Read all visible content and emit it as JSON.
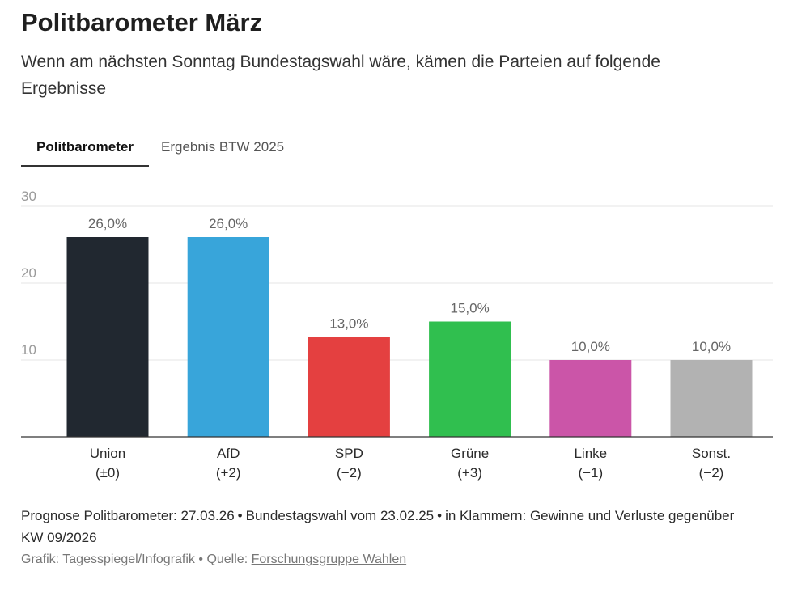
{
  "header": {
    "title": "Politbarometer März",
    "subtitle": "Wenn am nächsten Sonntag Bundestagswahl wäre, kämen die Parteien auf folgende Ergebnisse"
  },
  "tabs": [
    {
      "label": "Politbarometer",
      "active": true
    },
    {
      "label": "Ergebnis BTW 2025",
      "active": false
    }
  ],
  "chart_data": {
    "type": "bar",
    "categories": [
      "Union",
      "AfD",
      "SPD",
      "Grüne",
      "Linke",
      "Sonst."
    ],
    "changes": [
      "(±0)",
      "(+2)",
      "(−2)",
      "(+3)",
      "(−1)",
      "(−2)"
    ],
    "values": [
      26.0,
      26.0,
      13.0,
      15.0,
      10.0,
      10.0
    ],
    "value_labels": [
      "26,0%",
      "26,0%",
      "13,0%",
      "15,0%",
      "10,0%",
      "10,0%"
    ],
    "colors": [
      "#212830",
      "#38a5da",
      "#e44040",
      "#30bf4f",
      "#cb55a8",
      "#b2b2b2"
    ],
    "yticks": [
      10,
      20,
      30
    ],
    "ylim": [
      0,
      30
    ],
    "grid": true
  },
  "footnote": {
    "prognose": "Prognose Politbarometer: 27.03.26",
    "wahl": "Bundestagswahl vom 23.02.25",
    "klammern": "in Klammern: Gewinne und Verluste gegenüber KW 09/2026"
  },
  "source": {
    "grafik": "Grafik: Tagesspiegel/Infografik",
    "quelle_label": "Quelle:",
    "quelle_link": "Forschungsgruppe Wahlen"
  }
}
